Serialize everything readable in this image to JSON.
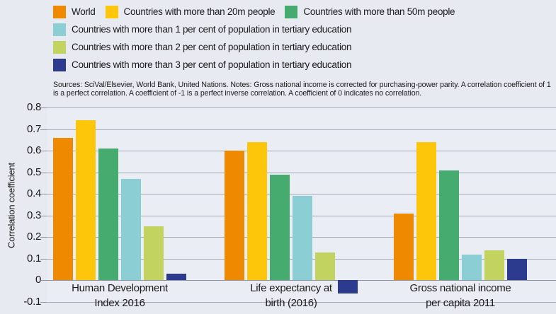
{
  "chart_data": {
    "type": "bar",
    "title": "",
    "xlabel": "",
    "ylabel": "Correlation coefficient",
    "ylim": [
      -0.1,
      0.8
    ],
    "ytick_step": 0.1,
    "yticks": [
      "0.8",
      "0.7",
      "0.6",
      "0.5",
      "0.4",
      "0.3",
      "0.2",
      "0.1",
      "0",
      "-0.1"
    ],
    "grid": true,
    "legend_position": "top-left",
    "categories": [
      {
        "line1": "Human Development",
        "line2": "Index 2016"
      },
      {
        "line1": "Life expectancy at",
        "line2": "birth (2016)"
      },
      {
        "line1": "Gross national income",
        "line2": "per capita 2011"
      }
    ],
    "series": [
      {
        "name": "World",
        "color": "#EF8A00",
        "values": [
          0.66,
          0.6,
          0.31
        ]
      },
      {
        "name": "Countries with more than 20m people",
        "color": "#FDC60B",
        "values": [
          0.74,
          0.64,
          0.64
        ]
      },
      {
        "name": "Countries with more than 50m people",
        "color": "#46AB6F",
        "values": [
          0.61,
          0.49,
          0.51
        ]
      },
      {
        "name": "Countries with more than 1 per cent of population in tertiary education",
        "color": "#8BCFD4",
        "values": [
          0.47,
          0.39,
          0.12
        ]
      },
      {
        "name": "Countries with more than 2 per cent of population in tertiary education",
        "color": "#C2D45F",
        "values": [
          0.25,
          0.13,
          0.14
        ]
      },
      {
        "name": "Countries with more than 3 per cent of population in tertiary education",
        "color": "#2D3B8E",
        "values": [
          0.03,
          -0.06,
          0.1
        ]
      }
    ],
    "notes": "Sources: SciVal/Elsevier, World Bank, United Nations. Notes: Gross national income is corrected for purchasing-power parity. A correlation coefficient of 1 is a perfect correlation. A coefficient of -1 is a perfect inverse correlation. A coefficient of 0 indicates no correlation."
  },
  "colors": {
    "background": "#E8EAF2",
    "plot_background": "#EBEDF5",
    "gridline": "#A3A8B5",
    "text": "#1A1A1A"
  }
}
